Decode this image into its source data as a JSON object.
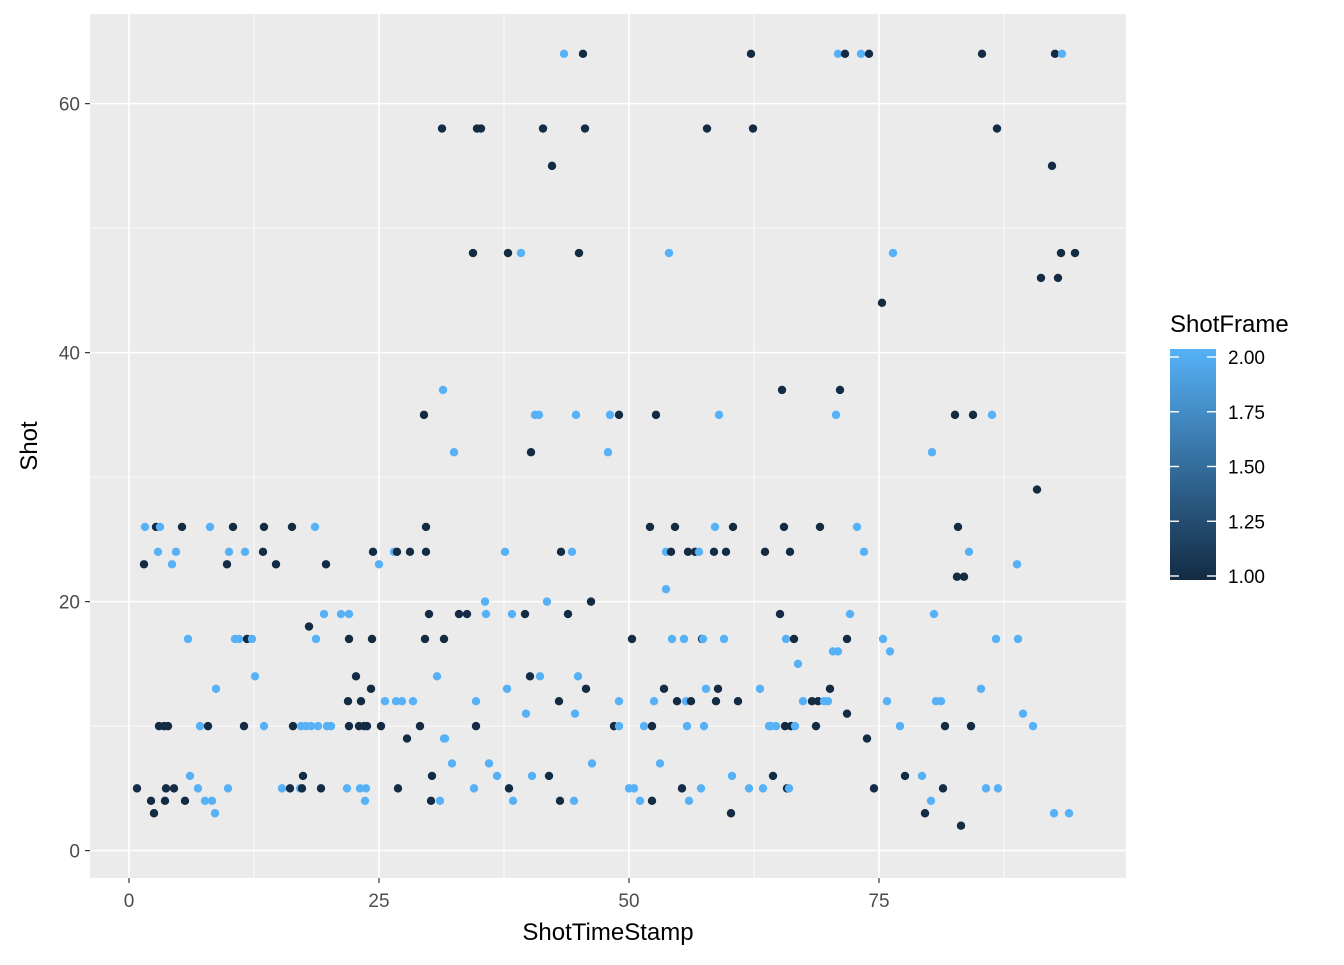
{
  "chart_data": {
    "type": "scatter",
    "xlabel": "ShotTimeStamp",
    "ylabel": "Shot",
    "xlim": [
      -3.9,
      99.7
    ],
    "ylim": [
      -2.2,
      67.2
    ],
    "x_ticks": [
      0,
      25,
      50,
      75
    ],
    "y_ticks": [
      0,
      20,
      40,
      60
    ],
    "x_tick_labels": [
      "0",
      "25",
      "50",
      "75"
    ],
    "y_tick_labels": [
      "0",
      "20",
      "40",
      "60"
    ],
    "grid": true,
    "panel_color": "#EBEBEB",
    "legend": {
      "title": "ShotFrame",
      "position": "right",
      "labels": [
        "2.00",
        "1.75",
        "1.50",
        "1.25",
        "1.00"
      ],
      "range": [
        1.0,
        2.0
      ],
      "low_color": "#132B43",
      "high_color": "#56B1F7"
    },
    "points": [
      [
        0.8,
        5,
        1
      ],
      [
        1.5,
        23,
        1
      ],
      [
        1.6,
        26,
        2
      ],
      [
        2.2,
        4,
        1
      ],
      [
        2.5,
        3,
        1
      ],
      [
        2.7,
        26,
        1
      ],
      [
        2.9,
        24,
        2
      ],
      [
        3,
        10,
        1
      ],
      [
        3.1,
        26,
        2
      ],
      [
        3.5,
        10,
        1
      ],
      [
        3.6,
        4,
        1
      ],
      [
        3.7,
        5,
        1
      ],
      [
        3.9,
        10,
        1
      ],
      [
        4.3,
        23,
        2
      ],
      [
        4.5,
        5,
        1
      ],
      [
        4.7,
        24,
        2
      ],
      [
        5.3,
        26,
        1
      ],
      [
        5.6,
        4,
        1
      ],
      [
        5.9,
        17,
        2
      ],
      [
        6.1,
        6,
        2
      ],
      [
        6.9,
        5,
        2
      ],
      [
        7.1,
        10,
        2
      ],
      [
        7.6,
        4,
        2
      ],
      [
        7.9,
        10,
        1
      ],
      [
        8.1,
        26,
        2
      ],
      [
        8.3,
        4,
        2
      ],
      [
        8.6,
        3,
        2
      ],
      [
        8.7,
        13,
        2
      ],
      [
        9.8,
        23,
        1
      ],
      [
        9.9,
        5,
        2
      ],
      [
        10,
        24,
        2
      ],
      [
        10.4,
        26,
        1
      ],
      [
        10.6,
        17,
        2
      ],
      [
        11,
        17,
        2
      ],
      [
        11.5,
        10,
        1
      ],
      [
        11.6,
        24,
        2
      ],
      [
        11.8,
        17,
        1
      ],
      [
        12.3,
        17,
        2
      ],
      [
        12.6,
        14,
        2
      ],
      [
        13.4,
        24,
        1
      ],
      [
        13.5,
        26,
        1
      ],
      [
        13.5,
        10,
        2
      ],
      [
        14.7,
        23,
        1
      ],
      [
        15.3,
        5,
        2
      ],
      [
        16.1,
        5,
        1
      ],
      [
        16.3,
        26,
        1
      ],
      [
        16.4,
        10,
        1
      ],
      [
        17.1,
        5,
        2
      ],
      [
        17.2,
        10,
        2
      ],
      [
        17.3,
        5,
        1
      ],
      [
        17.4,
        6,
        1
      ],
      [
        17.7,
        10,
        2
      ],
      [
        18,
        18,
        1
      ],
      [
        18.2,
        10,
        2
      ],
      [
        18.6,
        26,
        2
      ],
      [
        18.7,
        17,
        2
      ],
      [
        18.9,
        10,
        2
      ],
      [
        19.2,
        5,
        1
      ],
      [
        19.5,
        19,
        2
      ],
      [
        19.7,
        23,
        1
      ],
      [
        19.8,
        10,
        2
      ],
      [
        20.2,
        10,
        2
      ],
      [
        21.2,
        19,
        2
      ],
      [
        21.8,
        5,
        2
      ],
      [
        21.9,
        12,
        1
      ],
      [
        22,
        19,
        2
      ],
      [
        22,
        10,
        1
      ],
      [
        22,
        17,
        1
      ],
      [
        22.7,
        14,
        1
      ],
      [
        23,
        10,
        1
      ],
      [
        23.1,
        5,
        2
      ],
      [
        23.2,
        12,
        1
      ],
      [
        23.5,
        10,
        1
      ],
      [
        23.6,
        4,
        2
      ],
      [
        23.7,
        5,
        2
      ],
      [
        23.8,
        10,
        1
      ],
      [
        24.2,
        13,
        1
      ],
      [
        24.3,
        17,
        1
      ],
      [
        24.4,
        24,
        1
      ],
      [
        25,
        23,
        2
      ],
      [
        25.2,
        10,
        1
      ],
      [
        25.6,
        12,
        2
      ],
      [
        26.5,
        24,
        2
      ],
      [
        26.7,
        12,
        2
      ],
      [
        26.8,
        24,
        1
      ],
      [
        26.9,
        5,
        1
      ],
      [
        27.3,
        12,
        2
      ],
      [
        27.8,
        9,
        1
      ],
      [
        28.1,
        24,
        1
      ],
      [
        28.4,
        12,
        2
      ],
      [
        29.1,
        10,
        1
      ],
      [
        29.5,
        35,
        1
      ],
      [
        29.6,
        17,
        1
      ],
      [
        29.7,
        26,
        1
      ],
      [
        29.7,
        24,
        1
      ],
      [
        30,
        19,
        1
      ],
      [
        30.2,
        4,
        1
      ],
      [
        30.3,
        6,
        1
      ],
      [
        30.8,
        14,
        2
      ],
      [
        31.1,
        4,
        2
      ],
      [
        31.3,
        58,
        1
      ],
      [
        31.4,
        37,
        2
      ],
      [
        31.5,
        9,
        2
      ],
      [
        31.5,
        17,
        1
      ],
      [
        31.6,
        9,
        2
      ],
      [
        32.3,
        7,
        2
      ],
      [
        32.5,
        32,
        2
      ],
      [
        33,
        19,
        1
      ],
      [
        33.8,
        19,
        1
      ],
      [
        34.4,
        48,
        1
      ],
      [
        34.5,
        5,
        2
      ],
      [
        34.7,
        12,
        2
      ],
      [
        34.7,
        10,
        1
      ],
      [
        34.8,
        58,
        1
      ],
      [
        35.2,
        58,
        1
      ],
      [
        35.6,
        20,
        2
      ],
      [
        35.7,
        19,
        2
      ],
      [
        36,
        7,
        2
      ],
      [
        36.8,
        6,
        2
      ],
      [
        37.6,
        24,
        2
      ],
      [
        37.8,
        13,
        2
      ],
      [
        37.9,
        48,
        1
      ],
      [
        38,
        5,
        1
      ],
      [
        38.3,
        19,
        2
      ],
      [
        38.4,
        4,
        2
      ],
      [
        39.2,
        48,
        2
      ],
      [
        39.6,
        19,
        1
      ],
      [
        39.7,
        11,
        2
      ],
      [
        40.1,
        14,
        1
      ],
      [
        40.2,
        32,
        1
      ],
      [
        40.3,
        6,
        2
      ],
      [
        40.6,
        35,
        2
      ],
      [
        41,
        35,
        2
      ],
      [
        41.1,
        14,
        2
      ],
      [
        41.4,
        58,
        1
      ],
      [
        41.8,
        20,
        2
      ],
      [
        42,
        6,
        1
      ],
      [
        42.3,
        55,
        1
      ],
      [
        43,
        12,
        1
      ],
      [
        43.1,
        4,
        1
      ],
      [
        43.2,
        24,
        1
      ],
      [
        43.5,
        64,
        2
      ],
      [
        43.9,
        19,
        1
      ],
      [
        44.3,
        24,
        2
      ],
      [
        44.5,
        4,
        2
      ],
      [
        44.6,
        11,
        2
      ],
      [
        44.7,
        35,
        2
      ],
      [
        44.9,
        14,
        2
      ],
      [
        45,
        48,
        1
      ],
      [
        45.4,
        64,
        1
      ],
      [
        45.6,
        58,
        1
      ],
      [
        45.7,
        13,
        1
      ],
      [
        46.2,
        20,
        1
      ],
      [
        46.3,
        7,
        2
      ],
      [
        47.9,
        32,
        2
      ],
      [
        48.1,
        35,
        2
      ],
      [
        48.5,
        10,
        1
      ],
      [
        49,
        35,
        1
      ],
      [
        49,
        12,
        2
      ],
      [
        49,
        10,
        2
      ],
      [
        50,
        5,
        2
      ],
      [
        50.3,
        17,
        1
      ],
      [
        50.5,
        5,
        2
      ],
      [
        51.1,
        4,
        2
      ],
      [
        51.5,
        10,
        2
      ],
      [
        52.1,
        26,
        1
      ],
      [
        52.3,
        4,
        1
      ],
      [
        52.3,
        10,
        1
      ],
      [
        52.5,
        12,
        2
      ],
      [
        52.7,
        35,
        1
      ],
      [
        53.1,
        7,
        2
      ],
      [
        53.5,
        13,
        1
      ],
      [
        53.7,
        24,
        2
      ],
      [
        53.7,
        21,
        2
      ],
      [
        54,
        48,
        2
      ],
      [
        54.2,
        24,
        1
      ],
      [
        54.3,
        17,
        2
      ],
      [
        54.6,
        26,
        1
      ],
      [
        54.8,
        12,
        1
      ],
      [
        55.3,
        5,
        1
      ],
      [
        55.5,
        17,
        2
      ],
      [
        55.7,
        12,
        2
      ],
      [
        55.8,
        10,
        2
      ],
      [
        55.9,
        24,
        1
      ],
      [
        56,
        4,
        2
      ],
      [
        56.2,
        12,
        1
      ],
      [
        56.6,
        24,
        1
      ],
      [
        57,
        24,
        2
      ],
      [
        57.2,
        5,
        2
      ],
      [
        57.3,
        17,
        1
      ],
      [
        57.4,
        17,
        2
      ],
      [
        57.5,
        10,
        2
      ],
      [
        57.7,
        13,
        2
      ],
      [
        57.8,
        58,
        1
      ],
      [
        58.5,
        24,
        1
      ],
      [
        58.6,
        26,
        2
      ],
      [
        58.7,
        12,
        1
      ],
      [
        58.9,
        13,
        1
      ],
      [
        59,
        35,
        2
      ],
      [
        59.5,
        17,
        2
      ],
      [
        59.7,
        24,
        1
      ],
      [
        60.2,
        3,
        1
      ],
      [
        60.3,
        6,
        2
      ],
      [
        60.4,
        26,
        1
      ],
      [
        60.9,
        12,
        1
      ],
      [
        62,
        5,
        2
      ],
      [
        62.2,
        64,
        1
      ],
      [
        62.4,
        58,
        1
      ],
      [
        63.1,
        13,
        2
      ],
      [
        63.4,
        5,
        2
      ],
      [
        63.6,
        24,
        1
      ],
      [
        64,
        10,
        2
      ],
      [
        64.2,
        10,
        2
      ],
      [
        64.4,
        6,
        1
      ],
      [
        64.7,
        10,
        2
      ],
      [
        65.1,
        19,
        1
      ],
      [
        65.3,
        37,
        1
      ],
      [
        65.5,
        26,
        1
      ],
      [
        65.6,
        10,
        1
      ],
      [
        65.7,
        17,
        2
      ],
      [
        65.8,
        5,
        1
      ],
      [
        66,
        5,
        2
      ],
      [
        66.1,
        24,
        1
      ],
      [
        66.2,
        10,
        1
      ],
      [
        66.5,
        17,
        1
      ],
      [
        66.6,
        10,
        2
      ],
      [
        66.9,
        15,
        2
      ],
      [
        67.4,
        12,
        2
      ],
      [
        68.3,
        12,
        1
      ],
      [
        68.7,
        10,
        1
      ],
      [
        68.9,
        12,
        1
      ],
      [
        69.1,
        26,
        1
      ],
      [
        69.5,
        12,
        2
      ],
      [
        69.9,
        12,
        2
      ],
      [
        70.1,
        13,
        1
      ],
      [
        70.4,
        16,
        2
      ],
      [
        70.7,
        35,
        2
      ],
      [
        70.9,
        64,
        2
      ],
      [
        70.9,
        16,
        2
      ],
      [
        71.1,
        37,
        1
      ],
      [
        71.6,
        64,
        1
      ],
      [
        71.8,
        11,
        1
      ],
      [
        71.8,
        17,
        1
      ],
      [
        72.1,
        19,
        2
      ],
      [
        72.8,
        26,
        2
      ],
      [
        73.2,
        64,
        2
      ],
      [
        73.5,
        24,
        2
      ],
      [
        73.8,
        9,
        1
      ],
      [
        74,
        64,
        1
      ],
      [
        74.5,
        5,
        1
      ],
      [
        75.3,
        44,
        1
      ],
      [
        75.4,
        17,
        2
      ],
      [
        75.8,
        12,
        2
      ],
      [
        76.1,
        16,
        2
      ],
      [
        76.4,
        48,
        2
      ],
      [
        77.1,
        10,
        2
      ],
      [
        77.6,
        6,
        1
      ],
      [
        79.3,
        6,
        2
      ],
      [
        79.6,
        3,
        1
      ],
      [
        80.2,
        4,
        2
      ],
      [
        80.3,
        32,
        2
      ],
      [
        80.5,
        19,
        2
      ],
      [
        80.7,
        12,
        2
      ],
      [
        81.2,
        12,
        2
      ],
      [
        81.4,
        5,
        1
      ],
      [
        81.6,
        10,
        1
      ],
      [
        82.6,
        35,
        1
      ],
      [
        82.8,
        22,
        1
      ],
      [
        82.9,
        26,
        1
      ],
      [
        83.2,
        2,
        1
      ],
      [
        83.5,
        22,
        1
      ],
      [
        84,
        24,
        2
      ],
      [
        84.2,
        10,
        1
      ],
      [
        84.4,
        35,
        1
      ],
      [
        85.2,
        13,
        2
      ],
      [
        85.3,
        64,
        1
      ],
      [
        85.7,
        5,
        2
      ],
      [
        86.3,
        35,
        2
      ],
      [
        86.7,
        17,
        2
      ],
      [
        86.8,
        58,
        1
      ],
      [
        86.9,
        5,
        2
      ],
      [
        88.8,
        23,
        2
      ],
      [
        88.9,
        17,
        2
      ],
      [
        89.4,
        11,
        2
      ],
      [
        90.4,
        10,
        2
      ],
      [
        90.8,
        29,
        1
      ],
      [
        91.2,
        46,
        1
      ],
      [
        92.3,
        55,
        1
      ],
      [
        92.6,
        64,
        1
      ],
      [
        92.9,
        46,
        1
      ],
      [
        93.2,
        48,
        1
      ],
      [
        93.3,
        64,
        2
      ],
      [
        94,
        3,
        2
      ],
      [
        94.6,
        48,
        1
      ],
      [
        92.5,
        3,
        2
      ]
    ]
  }
}
